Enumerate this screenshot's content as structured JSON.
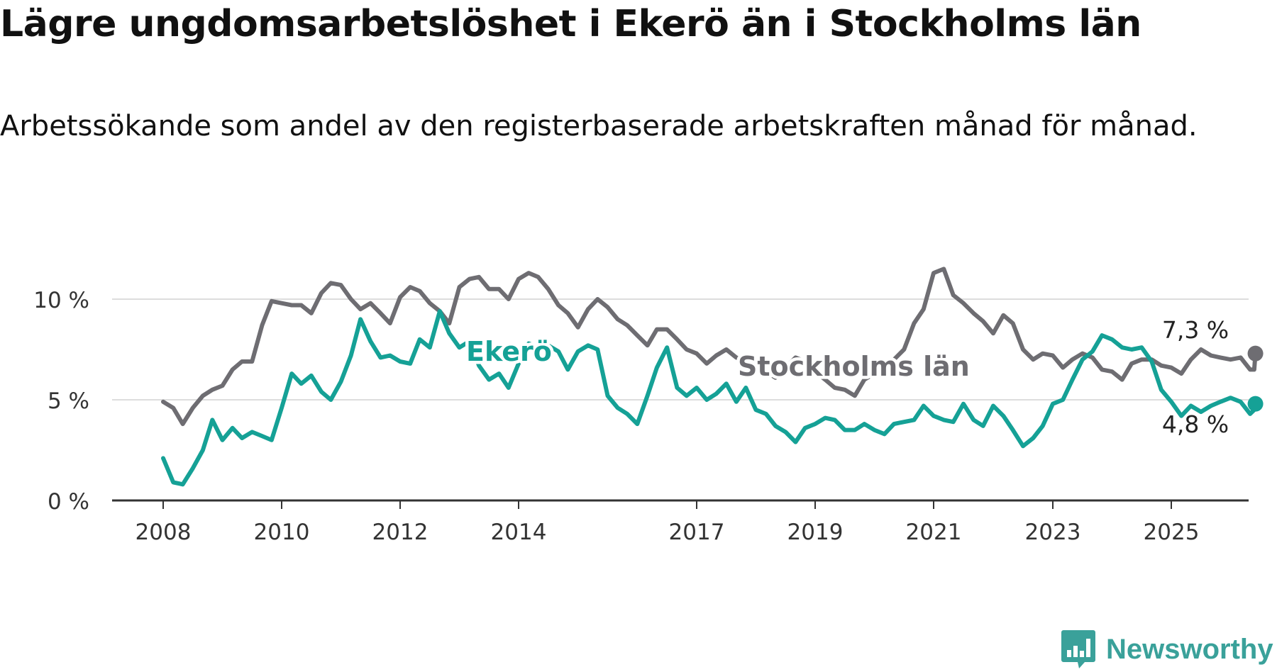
{
  "chart_data": {
    "type": "line",
    "title": "Lägre ungdomsarbetslöshet i Ekerö än i Stockholms län",
    "subtitle": "Arbetssökande som andel av den registerbaserade arbetskraften månad för månad.",
    "xlabel": "",
    "ylabel": "",
    "x_ticks": [
      "2008",
      "2010",
      "2012",
      "2014",
      "2017",
      "2019",
      "2021",
      "2023",
      "2025"
    ],
    "y_ticks": [
      "0 %",
      "5 %",
      "10 %"
    ],
    "ylim": [
      0,
      12
    ],
    "grid": true,
    "colors": {
      "stockholm": "#6e6d72",
      "ekero": "#15a196",
      "grid": "#dddddd",
      "axis": "#333333"
    },
    "series": [
      {
        "name": "Stockholms län",
        "color": "#6e6d72",
        "end_label": "7,3 %",
        "points": [
          [
            2008.0,
            4.9
          ],
          [
            2008.17,
            4.6
          ],
          [
            2008.33,
            3.8
          ],
          [
            2008.5,
            4.6
          ],
          [
            2008.67,
            5.2
          ],
          [
            2008.83,
            5.5
          ],
          [
            2009.0,
            5.7
          ],
          [
            2009.17,
            6.5
          ],
          [
            2009.33,
            6.9
          ],
          [
            2009.5,
            6.9
          ],
          [
            2009.67,
            8.7
          ],
          [
            2009.83,
            9.9
          ],
          [
            2010.0,
            9.8
          ],
          [
            2010.17,
            9.7
          ],
          [
            2010.33,
            9.7
          ],
          [
            2010.5,
            9.3
          ],
          [
            2010.67,
            10.3
          ],
          [
            2010.83,
            10.8
          ],
          [
            2011.0,
            10.7
          ],
          [
            2011.17,
            10.0
          ],
          [
            2011.33,
            9.5
          ],
          [
            2011.5,
            9.8
          ],
          [
            2011.67,
            9.3
          ],
          [
            2011.83,
            8.8
          ],
          [
            2012.0,
            10.1
          ],
          [
            2012.17,
            10.6
          ],
          [
            2012.33,
            10.4
          ],
          [
            2012.5,
            9.8
          ],
          [
            2012.67,
            9.4
          ],
          [
            2012.83,
            8.8
          ],
          [
            2013.0,
            10.6
          ],
          [
            2013.17,
            11.0
          ],
          [
            2013.33,
            11.1
          ],
          [
            2013.5,
            10.5
          ],
          [
            2013.67,
            10.5
          ],
          [
            2013.83,
            10.0
          ],
          [
            2014.0,
            11.0
          ],
          [
            2014.17,
            11.3
          ],
          [
            2014.33,
            11.1
          ],
          [
            2014.5,
            10.5
          ],
          [
            2014.67,
            9.7
          ],
          [
            2014.83,
            9.3
          ],
          [
            2015.0,
            8.6
          ],
          [
            2015.17,
            9.5
          ],
          [
            2015.33,
            10.0
          ],
          [
            2015.5,
            9.6
          ],
          [
            2015.67,
            9.0
          ],
          [
            2015.83,
            8.7
          ],
          [
            2016.0,
            8.2
          ],
          [
            2016.17,
            7.7
          ],
          [
            2016.33,
            8.5
          ],
          [
            2016.5,
            8.5
          ],
          [
            2016.67,
            8.0
          ],
          [
            2016.83,
            7.5
          ],
          [
            2017.0,
            7.3
          ],
          [
            2017.17,
            6.8
          ],
          [
            2017.33,
            7.2
          ],
          [
            2017.5,
            7.5
          ],
          [
            2017.67,
            7.1
          ],
          [
            2017.83,
            6.9
          ],
          [
            2018.0,
            6.6
          ],
          [
            2018.17,
            6.4
          ],
          [
            2018.33,
            6.1
          ],
          [
            2018.5,
            6.6
          ],
          [
            2018.67,
            7.1
          ],
          [
            2018.83,
            6.9
          ],
          [
            2019.0,
            6.4
          ],
          [
            2019.17,
            6.0
          ],
          [
            2019.33,
            5.6
          ],
          [
            2019.5,
            5.5
          ],
          [
            2019.67,
            5.2
          ],
          [
            2019.83,
            6.0
          ],
          [
            2020.0,
            6.3
          ],
          [
            2020.17,
            6.5
          ],
          [
            2020.33,
            7.0
          ],
          [
            2020.5,
            7.5
          ],
          [
            2020.67,
            8.8
          ],
          [
            2020.83,
            9.5
          ],
          [
            2021.0,
            11.3
          ],
          [
            2021.17,
            11.5
          ],
          [
            2021.33,
            10.2
          ],
          [
            2021.5,
            9.8
          ],
          [
            2021.67,
            9.3
          ],
          [
            2021.83,
            8.9
          ],
          [
            2022.0,
            8.3
          ],
          [
            2022.17,
            9.2
          ],
          [
            2022.33,
            8.8
          ],
          [
            2022.5,
            7.5
          ],
          [
            2022.67,
            7.0
          ],
          [
            2022.83,
            7.3
          ],
          [
            2023.0,
            7.2
          ],
          [
            2023.17,
            6.6
          ],
          [
            2023.33,
            7.0
          ],
          [
            2023.5,
            7.3
          ],
          [
            2023.67,
            7.1
          ],
          [
            2023.83,
            6.5
          ],
          [
            2024.0,
            6.4
          ],
          [
            2024.17,
            6.0
          ],
          [
            2024.33,
            6.8
          ],
          [
            2024.5,
            7.0
          ],
          [
            2024.67,
            7.0
          ],
          [
            2024.83,
            6.7
          ],
          [
            2025.0,
            6.6
          ],
          [
            2025.17,
            6.3
          ],
          [
            2025.33,
            7.0
          ],
          [
            2025.5,
            7.5
          ],
          [
            2025.67,
            7.2
          ],
          [
            2025.83,
            7.1
          ],
          [
            2026.0,
            7.0
          ],
          [
            2026.17,
            7.1
          ],
          [
            2026.33,
            6.5
          ],
          [
            2026.4,
            6.5
          ],
          [
            2026.42,
            7.3
          ]
        ]
      },
      {
        "name": "Ekerö",
        "color": "#15a196",
        "end_label": "4,8 %",
        "points": [
          [
            2008.0,
            2.1
          ],
          [
            2008.17,
            0.9
          ],
          [
            2008.33,
            0.8
          ],
          [
            2008.5,
            1.6
          ],
          [
            2008.67,
            2.5
          ],
          [
            2008.83,
            4.0
          ],
          [
            2009.0,
            3.0
          ],
          [
            2009.17,
            3.6
          ],
          [
            2009.33,
            3.1
          ],
          [
            2009.5,
            3.4
          ],
          [
            2009.67,
            3.2
          ],
          [
            2009.83,
            3.0
          ],
          [
            2010.0,
            4.6
          ],
          [
            2010.17,
            6.3
          ],
          [
            2010.33,
            5.8
          ],
          [
            2010.5,
            6.2
          ],
          [
            2010.67,
            5.4
          ],
          [
            2010.83,
            5.0
          ],
          [
            2011.0,
            5.9
          ],
          [
            2011.17,
            7.2
          ],
          [
            2011.33,
            9.0
          ],
          [
            2011.5,
            7.9
          ],
          [
            2011.67,
            7.1
          ],
          [
            2011.83,
            7.2
          ],
          [
            2012.0,
            6.9
          ],
          [
            2012.17,
            6.8
          ],
          [
            2012.33,
            8.0
          ],
          [
            2012.5,
            7.6
          ],
          [
            2012.67,
            9.4
          ],
          [
            2012.83,
            8.3
          ],
          [
            2013.0,
            7.6
          ],
          [
            2013.17,
            7.9
          ],
          [
            2013.33,
            6.7
          ],
          [
            2013.5,
            6.0
          ],
          [
            2013.67,
            6.3
          ],
          [
            2013.83,
            5.6
          ],
          [
            2014.0,
            6.8
          ],
          [
            2014.17,
            7.8
          ],
          [
            2014.33,
            7.6
          ],
          [
            2014.5,
            7.7
          ],
          [
            2014.67,
            7.4
          ],
          [
            2014.83,
            6.5
          ],
          [
            2015.0,
            7.4
          ],
          [
            2015.17,
            7.7
          ],
          [
            2015.33,
            7.5
          ],
          [
            2015.5,
            5.2
          ],
          [
            2015.67,
            4.6
          ],
          [
            2015.83,
            4.3
          ],
          [
            2016.0,
            3.8
          ],
          [
            2016.17,
            5.2
          ],
          [
            2016.33,
            6.6
          ],
          [
            2016.5,
            7.6
          ],
          [
            2016.67,
            5.6
          ],
          [
            2016.83,
            5.2
          ],
          [
            2017.0,
            5.6
          ],
          [
            2017.17,
            5.0
          ],
          [
            2017.33,
            5.3
          ],
          [
            2017.5,
            5.8
          ],
          [
            2017.67,
            4.9
          ],
          [
            2017.83,
            5.6
          ],
          [
            2018.0,
            4.5
          ],
          [
            2018.17,
            4.3
          ],
          [
            2018.33,
            3.7
          ],
          [
            2018.5,
            3.4
          ],
          [
            2018.67,
            2.9
          ],
          [
            2018.83,
            3.6
          ],
          [
            2019.0,
            3.8
          ],
          [
            2019.17,
            4.1
          ],
          [
            2019.33,
            4.0
          ],
          [
            2019.5,
            3.5
          ],
          [
            2019.67,
            3.5
          ],
          [
            2019.83,
            3.8
          ],
          [
            2020.0,
            3.5
          ],
          [
            2020.17,
            3.3
          ],
          [
            2020.33,
            3.8
          ],
          [
            2020.5,
            3.9
          ],
          [
            2020.67,
            4.0
          ],
          [
            2020.83,
            4.7
          ],
          [
            2021.0,
            4.2
          ],
          [
            2021.17,
            4.0
          ],
          [
            2021.33,
            3.9
          ],
          [
            2021.5,
            4.8
          ],
          [
            2021.67,
            4.0
          ],
          [
            2021.83,
            3.7
          ],
          [
            2022.0,
            4.7
          ],
          [
            2022.17,
            4.2
          ],
          [
            2022.33,
            3.5
          ],
          [
            2022.5,
            2.7
          ],
          [
            2022.67,
            3.1
          ],
          [
            2022.83,
            3.7
          ],
          [
            2023.0,
            4.8
          ],
          [
            2023.17,
            5.0
          ],
          [
            2023.33,
            6.0
          ],
          [
            2023.5,
            7.0
          ],
          [
            2023.67,
            7.4
          ],
          [
            2023.83,
            8.2
          ],
          [
            2024.0,
            8.0
          ],
          [
            2024.17,
            7.6
          ],
          [
            2024.33,
            7.5
          ],
          [
            2024.5,
            7.6
          ],
          [
            2024.67,
            6.9
          ],
          [
            2024.83,
            5.5
          ],
          [
            2025.0,
            4.9
          ],
          [
            2025.17,
            4.2
          ],
          [
            2025.33,
            4.7
          ],
          [
            2025.5,
            4.4
          ],
          [
            2025.67,
            4.7
          ],
          [
            2025.83,
            4.9
          ],
          [
            2026.0,
            5.1
          ],
          [
            2026.17,
            4.9
          ],
          [
            2026.33,
            4.3
          ],
          [
            2026.4,
            4.5
          ],
          [
            2026.42,
            4.8
          ]
        ]
      }
    ]
  },
  "brand": {
    "name": "Newsworthy",
    "icon": "newsworthy-bar-icon",
    "color": "#3aa19a"
  }
}
